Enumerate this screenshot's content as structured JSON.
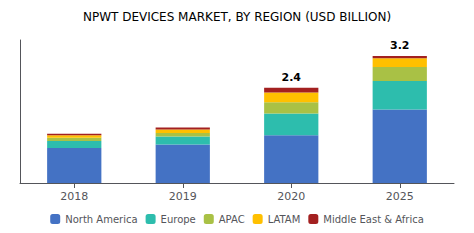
{
  "chart_data": {
    "type": "bar",
    "title": "NPWT DEVICES MARKET, BY REGION (USD BILLION)",
    "categories": [
      "2018",
      "2019",
      "2020",
      "2025"
    ],
    "series": [
      {
        "name": "North America",
        "color": "#4472C4",
        "values": [
          0.88,
          0.97,
          1.2,
          1.85
        ]
      },
      {
        "name": "Europe",
        "color": "#2DBDAD",
        "values": [
          0.18,
          0.2,
          0.55,
          0.72
        ]
      },
      {
        "name": "APAC",
        "color": "#A9C145",
        "values": [
          0.08,
          0.09,
          0.28,
          0.35
        ]
      },
      {
        "name": "LATAM",
        "color": "#FFC000",
        "values": [
          0.06,
          0.09,
          0.25,
          0.22
        ]
      },
      {
        "name": "Middle East & Africa",
        "color": "#A32020",
        "values": [
          0.04,
          0.05,
          0.12,
          0.06
        ]
      }
    ],
    "annotations": [
      {
        "category": "2020",
        "text": "2.4"
      },
      {
        "category": "2025",
        "text": "3.2"
      }
    ],
    "stacked": true,
    "ylim": [
      0,
      3.6
    ],
    "tick_labels": "x",
    "grid": false,
    "legend": "bottom"
  }
}
